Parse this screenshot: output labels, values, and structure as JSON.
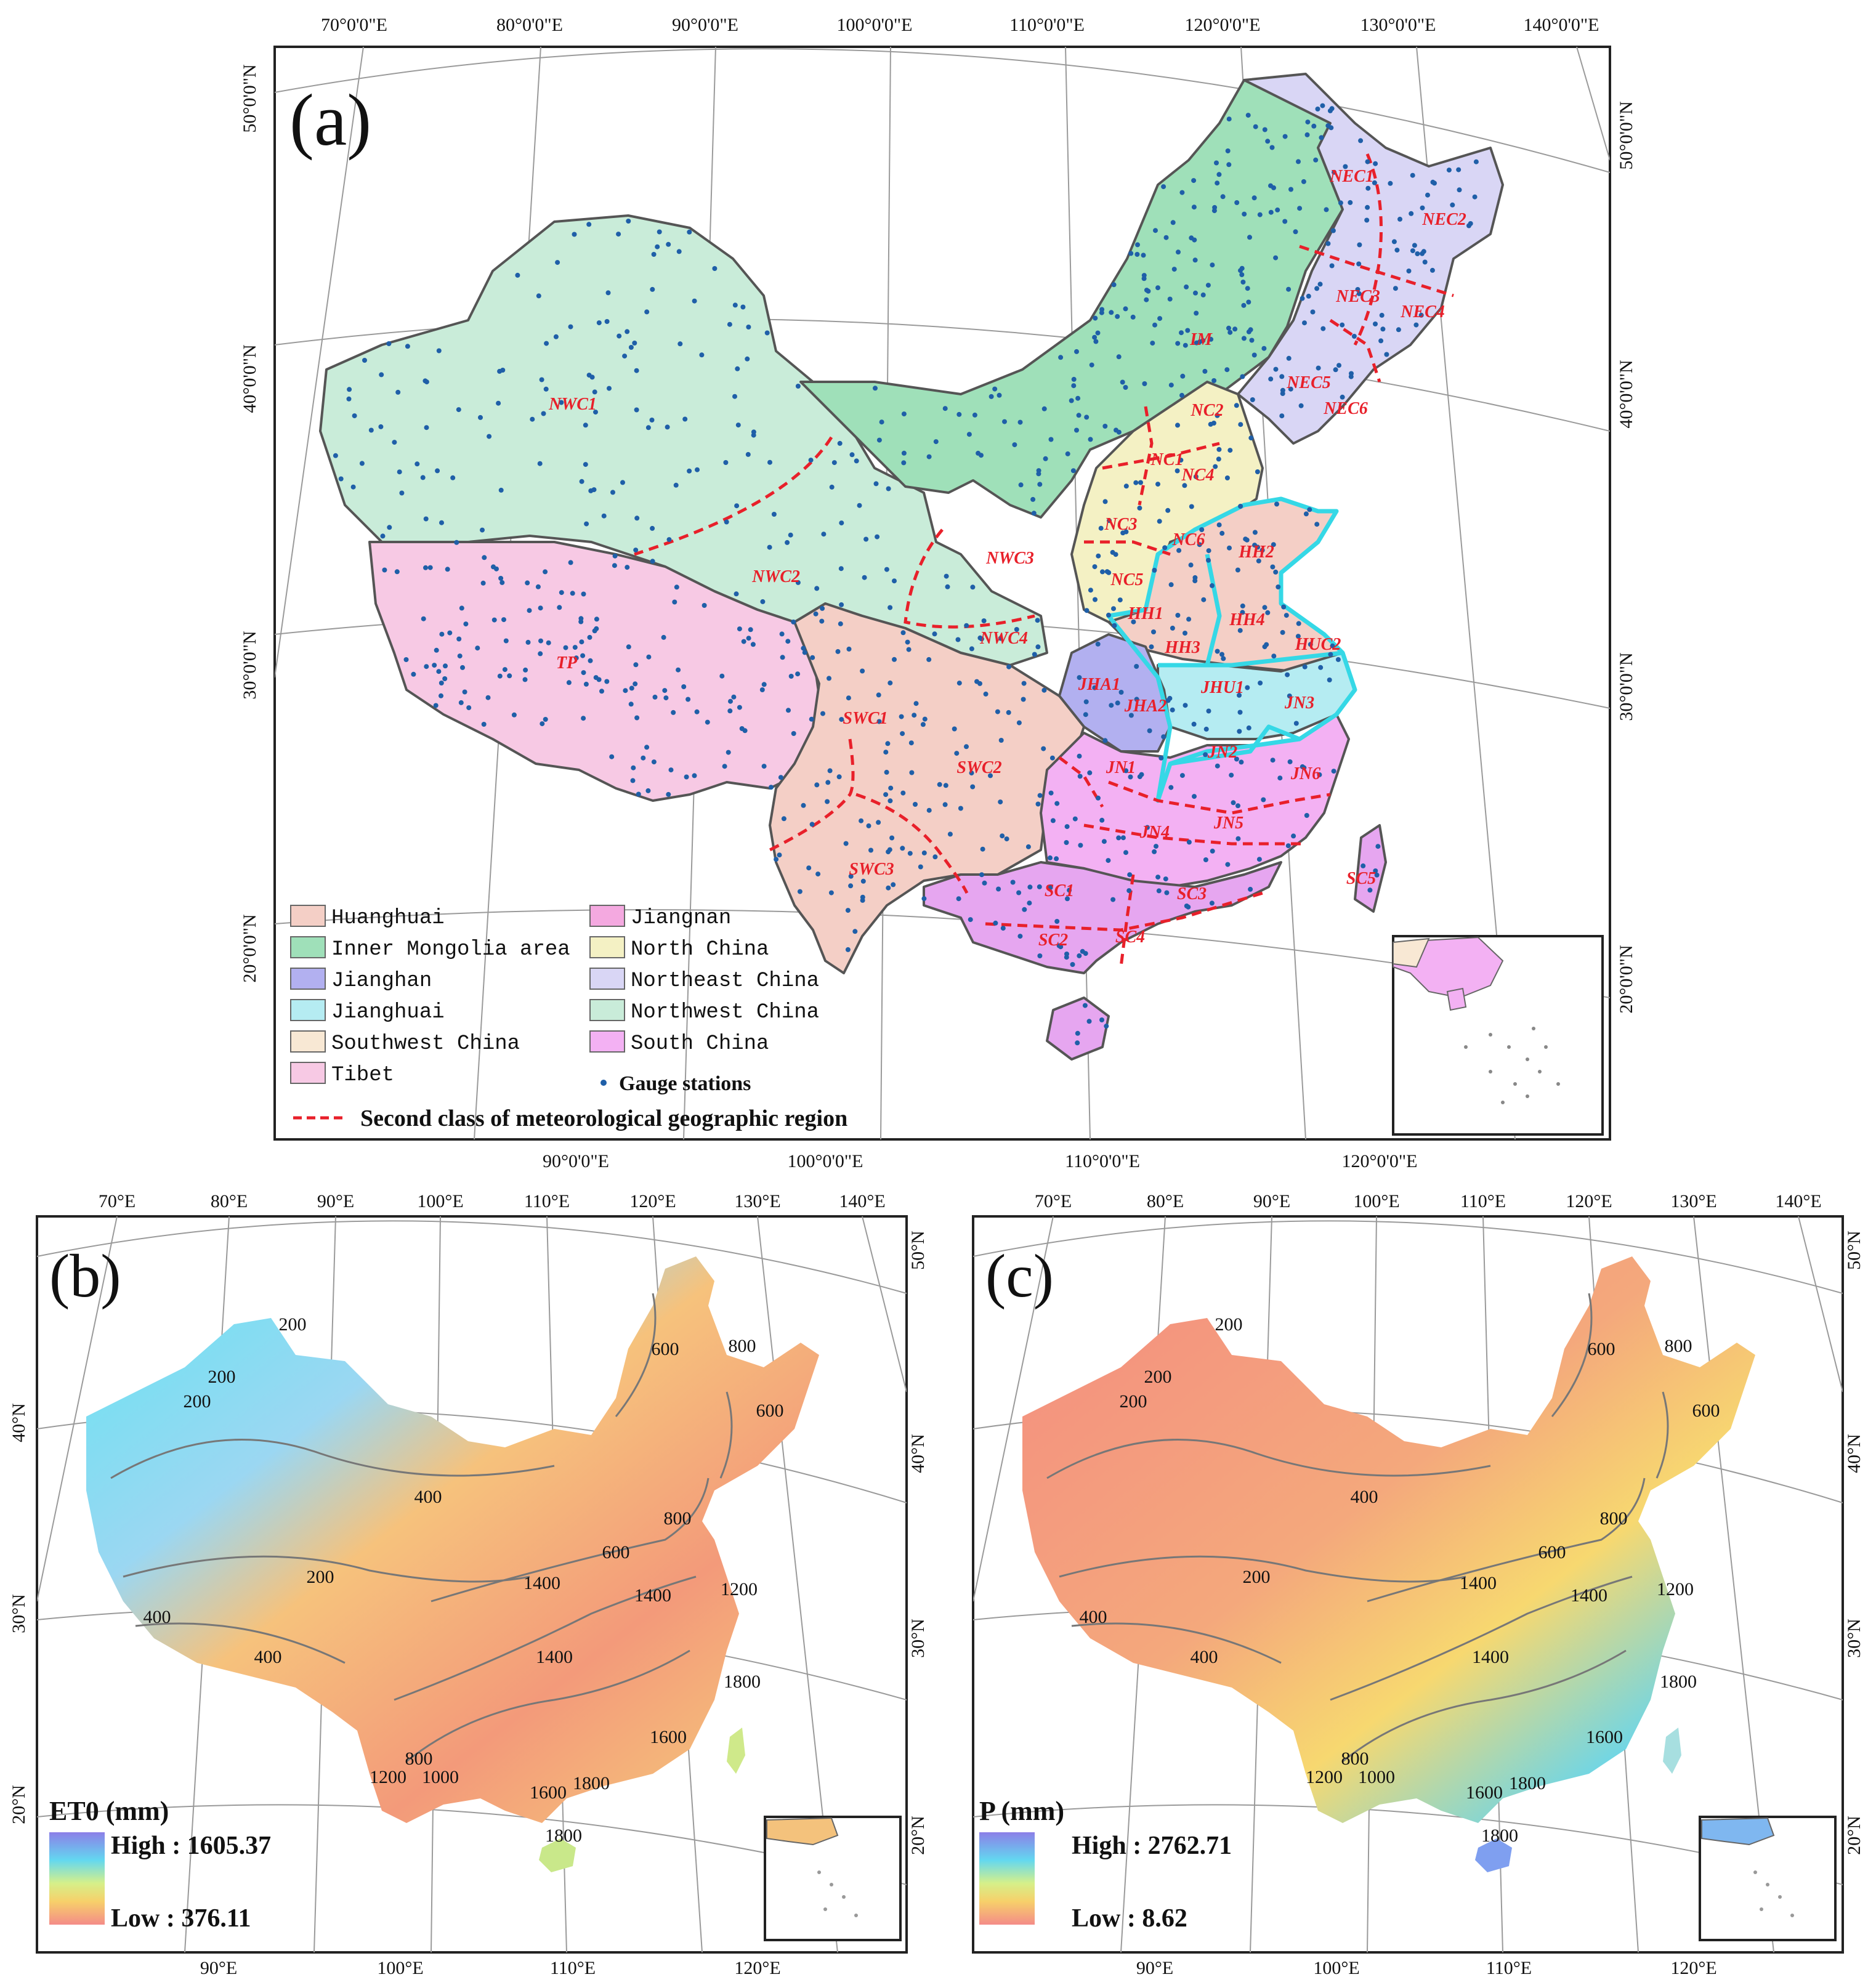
{
  "panel_a": {
    "label": "(a)",
    "top_lon_ticks": [
      "70°0'0\"E",
      "80°0'0\"E",
      "90°0'0\"E",
      "100°0'0\"E",
      "110°0'0\"E",
      "120°0'0\"E",
      "130°0'0\"E",
      "140°0'0\"E"
    ],
    "bottom_lon_ticks": [
      "90°0'0\"E",
      "100°0'0\"E",
      "110°0'0\"E",
      "120°0'0\"E"
    ],
    "left_lat_ticks": [
      "50°0'0\"N",
      "40°0'0\"N",
      "30°0'0\"N",
      "20°0'0\"N"
    ],
    "right_lat_ticks": [
      "50°0'0\"N",
      "40°0'0\"N",
      "30°0'0\"N",
      "20°0'0\"N"
    ],
    "region_labels": [
      "NWC1",
      "NWC2",
      "NWC3",
      "NWC4",
      "TP",
      "IM",
      "NEC1",
      "NEC2",
      "NEC3",
      "NEC4",
      "NEC5",
      "NEC6",
      "NC1",
      "NC2",
      "NC3",
      "NC4",
      "NC5",
      "NC6",
      "HH1",
      "HH2",
      "HH3",
      "HH4",
      "HUC2",
      "JHA1",
      "JHA2",
      "JHU1",
      "JN1",
      "JN2",
      "JN3",
      "JN4",
      "JN5",
      "JN6",
      "SWC1",
      "SWC2",
      "SWC3",
      "SC1",
      "SC2",
      "SC3",
      "SC4",
      "SC5"
    ],
    "legend": {
      "items": [
        {
          "label": "Huanghuai",
          "color": "#f4cfc6"
        },
        {
          "label": "Jiangnan",
          "color": "#f4a9e0"
        },
        {
          "label": "Inner Mongolia area",
          "color": "#9fe0b9"
        },
        {
          "label": "North China",
          "color": "#f4f1c4"
        },
        {
          "label": "Jianghan",
          "color": "#b2b0f0"
        },
        {
          "label": "Northeast China",
          "color": "#d9d6f5"
        },
        {
          "label": "Jianghuai",
          "color": "#b5ecf2"
        },
        {
          "label": "Northwest China",
          "color": "#c9ecd9"
        },
        {
          "label": "Southwest China",
          "color": "#f8e8d4"
        },
        {
          "label": "South China",
          "color": "#f3b1f3"
        },
        {
          "label": "Tibet",
          "color": "#f7c9e4"
        }
      ],
      "stations_label": "Gauge stations",
      "dashed_label": "Second class of meteorological geographic region"
    }
  },
  "panel_b": {
    "label": "(b)",
    "top_lon_ticks": [
      "70°E",
      "80°E",
      "90°E",
      "100°E",
      "110°E",
      "120°E",
      "130°E",
      "140°E"
    ],
    "bottom_lon_ticks": [
      "90°E",
      "100°E",
      "110°E",
      "120°E"
    ],
    "left_lat_ticks": [
      "40°N",
      "30°N",
      "20°N"
    ],
    "right_lat_ticks": [
      "50°N",
      "40°N",
      "30°N",
      "20°N"
    ],
    "contours": [
      "200",
      "200",
      "200",
      "200",
      "400",
      "400",
      "400",
      "600",
      "600",
      "600",
      "800",
      "800",
      "800",
      "1000",
      "1200",
      "1200",
      "1400",
      "1400",
      "1400",
      "1600",
      "1600",
      "1800",
      "1800",
      "1800"
    ],
    "legend_title": "ET0 (mm)",
    "high": "High : 1605.37",
    "low": "Low : 376.11"
  },
  "panel_c": {
    "label": "(c)",
    "top_lon_ticks": [
      "70°E",
      "80°E",
      "90°E",
      "100°E",
      "110°E",
      "120°E",
      "130°E",
      "140°E"
    ],
    "bottom_lon_ticks": [
      "90°E",
      "100°E",
      "110°E",
      "120°E"
    ],
    "right_lat_ticks": [
      "50°N",
      "40°N",
      "30°N",
      "20°N"
    ],
    "contours": [
      "200",
      "200",
      "200",
      "200",
      "400",
      "400",
      "400",
      "600",
      "600",
      "600",
      "800",
      "800",
      "800",
      "1000",
      "1200",
      "1200",
      "1400",
      "1400",
      "1400",
      "1600",
      "1600",
      "1800",
      "1800",
      "1800"
    ],
    "legend_title": "P (mm)",
    "high": "High : 2762.71",
    "low": "Low : 8.62"
  },
  "colors": {
    "station_dot": "#1f5fa8",
    "dashed_boundary": "#e8202a",
    "cyan_boundary": "#35d8e6",
    "region_label": "#e8202a"
  }
}
